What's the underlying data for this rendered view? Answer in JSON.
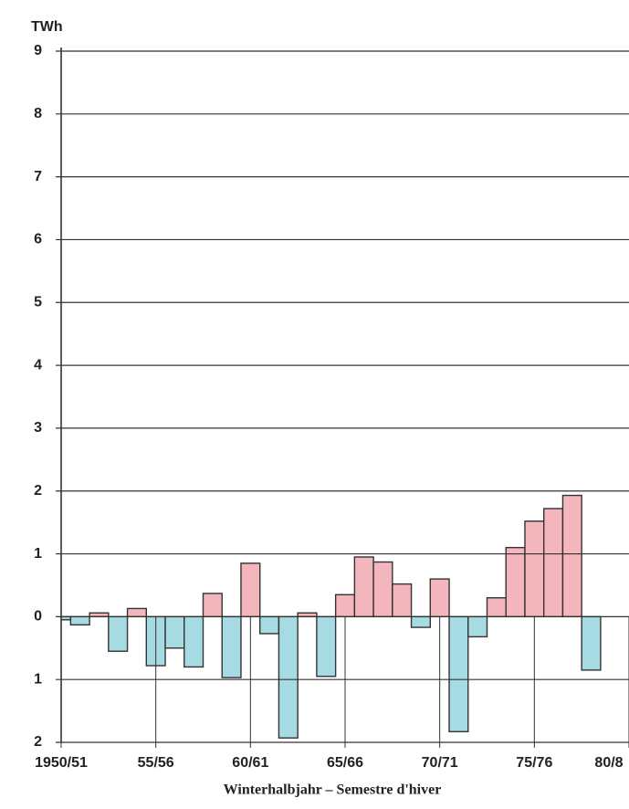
{
  "chart_data": {
    "type": "bar",
    "y_unit": "TWh",
    "x_axis_title": "Winterhalbjahr – Semestre d'hiver",
    "x": [
      1950,
      1951,
      1952,
      1953,
      1954,
      1955,
      1956,
      1957,
      1958,
      1959,
      1960,
      1961,
      1962,
      1963,
      1964,
      1965,
      1966,
      1967,
      1968,
      1969,
      1970,
      1971,
      1972,
      1973,
      1974,
      1975,
      1976,
      1977,
      1978
    ],
    "values": [
      -0.05,
      -0.13,
      0.06,
      -0.55,
      0.13,
      -0.78,
      -0.5,
      -0.8,
      0.37,
      -0.97,
      0.85,
      -0.27,
      -1.93,
      0.06,
      -0.95,
      0.35,
      0.95,
      0.87,
      0.52,
      -0.17,
      0.6,
      -1.83,
      -0.32,
      0.3,
      1.1,
      1.52,
      1.72,
      1.93,
      -0.85
    ],
    "color_positive": "#f3b6bd",
    "color_negative": "#a6dbe4",
    "xlim": [
      1950,
      1980
    ],
    "xticks": [
      {
        "value": 1950,
        "label": "1950/51"
      },
      {
        "value": 1955,
        "label": "55/56"
      },
      {
        "value": 1960,
        "label": "60/61"
      },
      {
        "value": 1965,
        "label": "65/66"
      },
      {
        "value": 1970,
        "label": "70/71"
      },
      {
        "value": 1975,
        "label": "75/76"
      },
      {
        "value": 1980,
        "label": "80/8"
      }
    ],
    "ylim": [
      -2,
      9
    ],
    "yticks": [
      {
        "value": -2,
        "label": "2"
      },
      {
        "value": -1,
        "label": "1"
      },
      0,
      1,
      2,
      3,
      4,
      5,
      6,
      7,
      8,
      9
    ],
    "grid": true
  }
}
